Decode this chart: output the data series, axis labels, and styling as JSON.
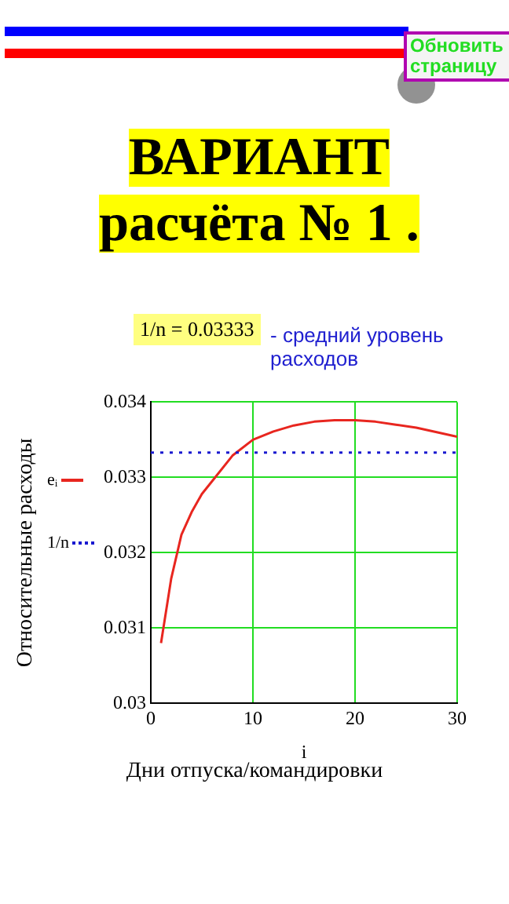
{
  "chart_data": {
    "type": "line",
    "title": "ВАРИАНТ расчёта № 1 .",
    "xlabel": "i",
    "ylabel": "Относительные расходы",
    "annotations": [
      "1/n = 0.03333",
      "-  средний уровень расходов",
      "Дни отпуска/командировки",
      "Обновить страницу"
    ],
    "x": [
      1,
      2,
      3,
      4,
      5,
      6,
      8,
      10,
      12,
      14,
      16,
      18,
      20,
      22,
      24,
      26,
      28,
      30
    ],
    "series": [
      {
        "name": "eᵢ",
        "color": "#e8261f",
        "values": [
          0.0308,
          0.03166,
          0.03224,
          0.03254,
          0.03278,
          0.03295,
          0.03329,
          0.0335,
          0.03361,
          0.03369,
          0.03374,
          0.03376,
          0.03376,
          0.03374,
          0.0337,
          0.03366,
          0.0336,
          0.03354
        ]
      }
    ],
    "ref_lines": [
      {
        "axis": "y",
        "value": 0.03333,
        "label": "1/n",
        "color": "#1a1ad0",
        "line_style": "dotted"
      }
    ],
    "xlim": [
      0,
      30
    ],
    "xticks": [
      0,
      10,
      20,
      30
    ],
    "ylim": [
      0.03,
      0.034
    ],
    "yticks": [
      0.03,
      0.031,
      0.032,
      0.033,
      0.034
    ],
    "grid": true,
    "legend": "left",
    "marker": "none",
    "line_style": "solid"
  }
}
